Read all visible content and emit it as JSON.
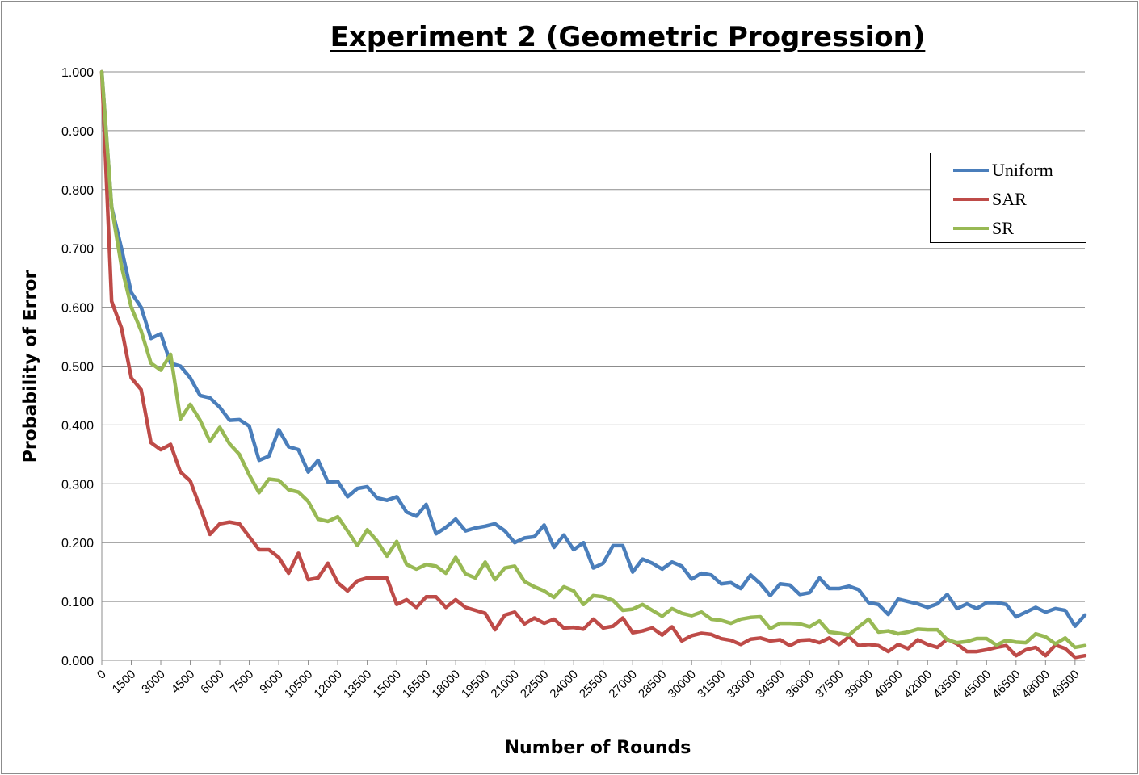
{
  "chart_data": {
    "type": "line",
    "title": "Experiment 2 (Geometric Progression)",
    "xlabel": "Number of Rounds",
    "ylabel": "Probability of Error",
    "ylim": [
      0,
      1
    ],
    "y_ticks": [
      "0.000",
      "0.100",
      "0.200",
      "0.300",
      "0.400",
      "0.500",
      "0.600",
      "0.700",
      "0.800",
      "0.900",
      "1.000"
    ],
    "x_start": 0,
    "x_step": 500,
    "x_tick_labels": [
      "0",
      "1500",
      "3000",
      "4500",
      "6000",
      "7500",
      "9000",
      "10500",
      "12000",
      "13500",
      "15000",
      "16500",
      "18000",
      "19500",
      "21000",
      "22500",
      "24000",
      "25500",
      "27000",
      "28500",
      "30000",
      "31500",
      "33000",
      "34500",
      "36000",
      "37500",
      "39000",
      "40500",
      "42000",
      "43500",
      "45000",
      "46500",
      "48000",
      "49500"
    ],
    "grid": true,
    "legend_position": "right",
    "series": [
      {
        "name": "Uniform",
        "color": "#4a7ebb",
        "values": [
          1.0,
          0.77,
          0.7,
          0.625,
          0.6,
          0.547,
          0.555,
          0.505,
          0.5,
          0.48,
          0.45,
          0.446,
          0.43,
          0.408,
          0.409,
          0.398,
          0.34,
          0.347,
          0.392,
          0.363,
          0.358,
          0.32,
          0.34,
          0.303,
          0.304,
          0.278,
          0.292,
          0.295,
          0.276,
          0.272,
          0.278,
          0.252,
          0.245,
          0.265,
          0.215,
          0.226,
          0.24,
          0.22,
          0.225,
          0.228,
          0.232,
          0.22,
          0.2,
          0.208,
          0.21,
          0.23,
          0.192,
          0.213,
          0.188,
          0.2,
          0.157,
          0.165,
          0.195,
          0.195,
          0.15,
          0.172,
          0.165,
          0.155,
          0.167,
          0.16,
          0.138,
          0.148,
          0.145,
          0.13,
          0.132,
          0.122,
          0.145,
          0.13,
          0.11,
          0.13,
          0.128,
          0.112,
          0.115,
          0.14,
          0.122,
          0.122,
          0.126,
          0.12,
          0.098,
          0.095,
          0.078,
          0.104,
          0.1,
          0.096,
          0.09,
          0.096,
          0.112,
          0.088,
          0.096,
          0.088,
          0.098,
          0.098,
          0.095,
          0.074,
          0.082,
          0.09,
          0.082,
          0.088,
          0.085,
          0.058,
          0.077
        ]
      },
      {
        "name": "SAR",
        "color": "#be4b48",
        "values": [
          1.0,
          0.61,
          0.565,
          0.48,
          0.46,
          0.37,
          0.358,
          0.367,
          0.32,
          0.305,
          0.26,
          0.214,
          0.232,
          0.235,
          0.232,
          0.21,
          0.188,
          0.188,
          0.175,
          0.148,
          0.182,
          0.137,
          0.14,
          0.165,
          0.132,
          0.118,
          0.135,
          0.14,
          0.14,
          0.14,
          0.095,
          0.103,
          0.09,
          0.108,
          0.108,
          0.09,
          0.103,
          0.09,
          0.085,
          0.08,
          0.052,
          0.077,
          0.082,
          0.062,
          0.072,
          0.063,
          0.07,
          0.055,
          0.056,
          0.053,
          0.07,
          0.055,
          0.058,
          0.072,
          0.047,
          0.05,
          0.055,
          0.043,
          0.057,
          0.033,
          0.042,
          0.046,
          0.044,
          0.037,
          0.034,
          0.027,
          0.036,
          0.038,
          0.033,
          0.035,
          0.025,
          0.034,
          0.035,
          0.03,
          0.038,
          0.027,
          0.04,
          0.025,
          0.027,
          0.025,
          0.015,
          0.027,
          0.02,
          0.035,
          0.027,
          0.022,
          0.036,
          0.028,
          0.015,
          0.015,
          0.018,
          0.022,
          0.025,
          0.008,
          0.018,
          0.022,
          0.008,
          0.026,
          0.02,
          0.005,
          0.008
        ]
      },
      {
        "name": "SR",
        "color": "#98b954",
        "values": [
          1.0,
          0.77,
          0.67,
          0.6,
          0.56,
          0.505,
          0.493,
          0.52,
          0.41,
          0.435,
          0.408,
          0.372,
          0.396,
          0.368,
          0.35,
          0.315,
          0.285,
          0.308,
          0.306,
          0.29,
          0.286,
          0.27,
          0.24,
          0.236,
          0.244,
          0.22,
          0.195,
          0.222,
          0.203,
          0.177,
          0.202,
          0.163,
          0.155,
          0.163,
          0.16,
          0.148,
          0.175,
          0.147,
          0.14,
          0.167,
          0.137,
          0.157,
          0.16,
          0.134,
          0.125,
          0.118,
          0.107,
          0.125,
          0.118,
          0.095,
          0.11,
          0.108,
          0.102,
          0.085,
          0.087,
          0.095,
          0.085,
          0.075,
          0.088,
          0.08,
          0.076,
          0.082,
          0.07,
          0.068,
          0.063,
          0.07,
          0.073,
          0.074,
          0.054,
          0.063,
          0.063,
          0.062,
          0.057,
          0.067,
          0.048,
          0.046,
          0.043,
          0.057,
          0.07,
          0.048,
          0.05,
          0.045,
          0.048,
          0.053,
          0.052,
          0.052,
          0.035,
          0.03,
          0.032,
          0.037,
          0.037,
          0.026,
          0.034,
          0.031,
          0.03,
          0.045,
          0.04,
          0.028,
          0.038,
          0.022,
          0.025
        ]
      }
    ]
  }
}
